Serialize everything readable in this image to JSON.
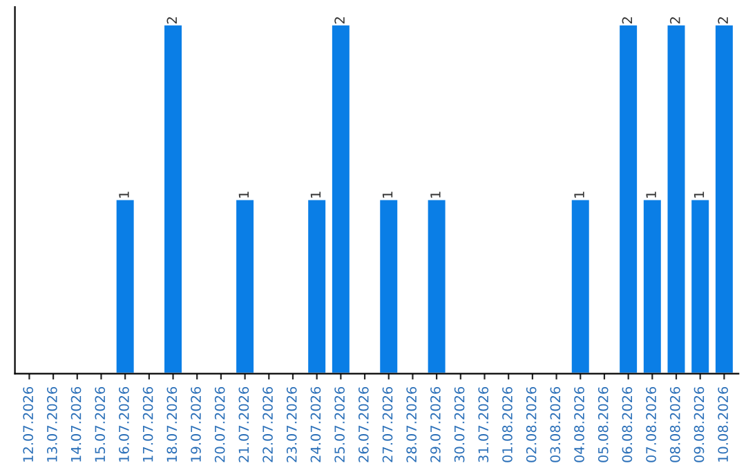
{
  "chart_data": {
    "type": "bar",
    "categories": [
      "12.07.2026",
      "13.07.2026",
      "14.07.2026",
      "15.07.2026",
      "16.07.2026",
      "17.07.2026",
      "18.07.2026",
      "19.07.2026",
      "20.07.2026",
      "21.07.2026",
      "22.07.2026",
      "23.07.2026",
      "24.07.2026",
      "25.07.2026",
      "26.07.2026",
      "27.07.2026",
      "28.07.2026",
      "29.07.2026",
      "30.07.2026",
      "31.07.2026",
      "01.08.2026",
      "02.08.2026",
      "03.08.2026",
      "04.08.2026",
      "05.08.2026",
      "06.08.2026",
      "07.08.2026",
      "08.08.2026",
      "09.08.2026",
      "10.08.2026"
    ],
    "values": [
      null,
      null,
      null,
      null,
      1,
      null,
      2,
      null,
      null,
      1,
      null,
      null,
      1,
      2,
      null,
      1,
      null,
      1,
      null,
      null,
      null,
      null,
      null,
      1,
      null,
      2,
      1,
      2,
      1,
      2
    ],
    "value_labels": [
      null,
      null,
      null,
      null,
      "1",
      null,
      "2",
      null,
      null,
      "1",
      null,
      null,
      "1",
      "2",
      null,
      "1",
      null,
      "1",
      null,
      null,
      null,
      null,
      null,
      "1",
      null,
      "2",
      "1",
      "2",
      "1",
      "2"
    ],
    "color": "#0a7ee6",
    "ylim": [
      0,
      2.1
    ],
    "tick_labels": "x",
    "grid": false,
    "legend": false
  }
}
